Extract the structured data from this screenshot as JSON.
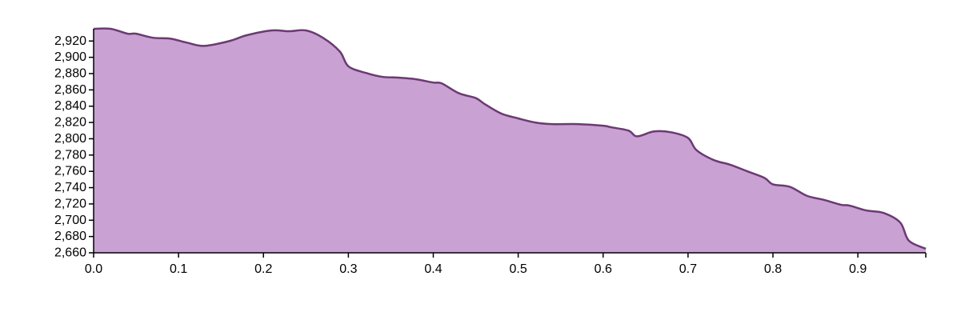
{
  "chart_data": {
    "type": "area",
    "title": "",
    "xlabel": "",
    "ylabel": "",
    "xlim": [
      0,
      0.98
    ],
    "ylim": [
      2660,
      2935
    ],
    "x_ticks": [
      0.0,
      0.1,
      0.2,
      0.3,
      0.4,
      0.5,
      0.6,
      0.7,
      0.8,
      0.9
    ],
    "x_tick_labels": [
      "0.0",
      "0.1",
      "0.2",
      "0.3",
      "0.4",
      "0.5",
      "0.6",
      "0.7",
      "0.8",
      "0.9"
    ],
    "y_ticks": [
      2660,
      2680,
      2700,
      2720,
      2740,
      2760,
      2780,
      2800,
      2820,
      2840,
      2860,
      2880,
      2900,
      2920
    ],
    "y_tick_labels": [
      "2,660",
      "2,680",
      "2,700",
      "2,720",
      "2,740",
      "2,760",
      "2,780",
      "2,800",
      "2,820",
      "2,840",
      "2,860",
      "2,880",
      "2,900",
      "2,920"
    ],
    "grid": false,
    "legend": "none",
    "fill_color": "#c9a1d3",
    "line_color": "#6b3a73",
    "x": [
      0,
      0.02,
      0.04,
      0.05,
      0.07,
      0.09,
      0.11,
      0.13,
      0.16,
      0.18,
      0.21,
      0.23,
      0.25,
      0.27,
      0.29,
      0.3,
      0.32,
      0.34,
      0.36,
      0.38,
      0.4,
      0.41,
      0.43,
      0.45,
      0.46,
      0.48,
      0.5,
      0.52,
      0.54,
      0.57,
      0.6,
      0.61,
      0.63,
      0.64,
      0.66,
      0.68,
      0.7,
      0.71,
      0.73,
      0.75,
      0.77,
      0.79,
      0.8,
      0.82,
      0.84,
      0.86,
      0.88,
      0.89,
      0.91,
      0.93,
      0.95,
      0.96,
      0.98
    ],
    "y": [
      2935,
      2935,
      2929,
      2929,
      2924,
      2923,
      2918,
      2914,
      2920,
      2927,
      2933,
      2932,
      2933,
      2924,
      2907,
      2889,
      2881,
      2876,
      2875,
      2873,
      2869,
      2868,
      2856,
      2850,
      2843,
      2831,
      2825,
      2820,
      2818,
      2818,
      2816,
      2814,
      2810,
      2803,
      2809,
      2808,
      2801,
      2786,
      2774,
      2768,
      2760,
      2752,
      2744,
      2741,
      2730,
      2725,
      2719,
      2718,
      2712,
      2709,
      2697,
      2675,
      2665
    ]
  }
}
